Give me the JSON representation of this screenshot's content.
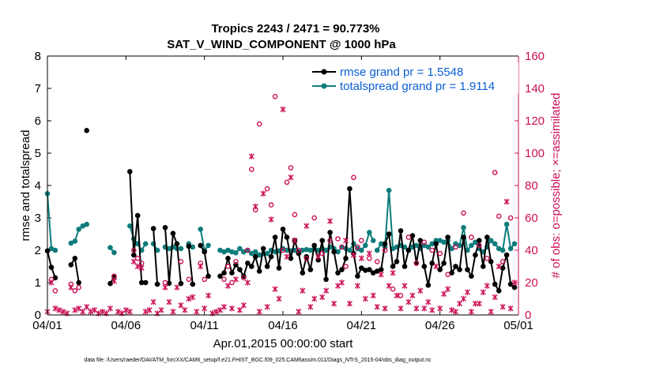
{
  "chart_data": {
    "type": "line",
    "title": "Tropics 2243 / 2471 = 90.773%",
    "subtitle": "SAT_V_WIND_COMPONENT @ 1000 hPa",
    "xlabel": "Apr.01,2015 00:00:00 start",
    "ylabel": "rmse and totalspread",
    "y2label": "# of obs: o=possible; ×=assimilated",
    "xticks": [
      "04/01",
      "04/06",
      "04/11",
      "04/16",
      "04/21",
      "04/26",
      "05/01"
    ],
    "yticks": [
      "0",
      "1",
      "2",
      "3",
      "4",
      "5",
      "6",
      "7",
      "8"
    ],
    "y2ticks": [
      "0",
      "20",
      "40",
      "60",
      "80",
      "100",
      "120",
      "140",
      "160"
    ],
    "xlim": [
      0,
      30
    ],
    "ylim": [
      0,
      8
    ],
    "y2lim": [
      0,
      160
    ],
    "footnote": "data file: /Users/raeder/DAI/ATM_forcXX/CAM6_setup/f.e21.FHIST_BGC.f09_025.CAM6assim.011/Diags_NTrS_2015-04/obs_diag_output.nc",
    "colors": {
      "rmse": "#000000",
      "spread": "#0e7c7b",
      "obs": "#cc0e56",
      "legend_text": "#0a5fd6",
      "y2axis": "#cc0e56"
    },
    "series": [
      {
        "name": "rmse grand pr = 1.5548",
        "color": "#000000",
        "segments": [
          {
            "x": [
              0,
              0.25,
              0.5
            ],
            "y": [
              1.98,
              1.47,
              1.15
            ]
          },
          {
            "x": [
              1.5,
              1.75,
              2.0
            ],
            "y": [
              1.55,
              1.75,
              1.0
            ]
          },
          {
            "x": [
              2.5
            ],
            "y": [
              5.7
            ]
          },
          {
            "x": [
              4.0,
              4.25
            ],
            "y": [
              0.97,
              1.18
            ]
          },
          {
            "x": [
              5.25,
              5.5,
              5.75,
              6.0,
              6.25
            ],
            "y": [
              4.43,
              1.85,
              3.07,
              1.0,
              1.0
            ]
          },
          {
            "x": [
              6.75,
              7.0
            ],
            "y": [
              2.67,
              0.95
            ]
          },
          {
            "x": [
              7.5,
              7.75,
              8.0,
              8.25,
              8.5
            ],
            "y": [
              2.7,
              0.98,
              2.52,
              2.2,
              0.97
            ]
          },
          {
            "x": [
              9.0,
              9.25
            ],
            "y": [
              2.12,
              0.95
            ]
          },
          {
            "x": [
              9.75,
              10.0,
              10.25
            ],
            "y": [
              2.15,
              1.95,
              1.2
            ]
          },
          {
            "x": [
              11.0,
              11.25,
              11.5,
              11.75,
              12.0,
              12.25,
              12.5,
              12.75,
              13.0,
              13.25,
              13.5,
              13.75,
              14.0,
              14.25,
              14.5,
              14.75,
              15.0,
              15.25,
              15.5,
              15.75,
              16.0,
              16.25,
              16.5,
              16.75,
              17.0,
              17.25,
              17.5,
              17.75,
              18.0,
              18.25,
              18.5,
              18.75,
              19.0,
              19.25,
              19.5,
              19.75,
              20.0,
              20.25,
              20.5,
              20.75
            ],
            "y": [
              1.2,
              1.3,
              1.75,
              1.3,
              1.55,
              1.4,
              1.2,
              1.6,
              1.5,
              1.8,
              1.35,
              2.05,
              1.5,
              1.8,
              2.4,
              1.45,
              2.65,
              2.4,
              1.75,
              2.3,
              1.9,
              1.3,
              1.8,
              1.4,
              2.15,
              1.7,
              2.3,
              1.1,
              2.55,
              1.95,
              1.3,
              1.4,
              1.75,
              3.9,
              1.9,
              1.2,
              1.45,
              1.38,
              1.4,
              1.3
            ]
          },
          {
            "x": [
              21.0,
              21.25,
              21.5,
              21.75,
              22.0,
              22.25,
              22.5,
              22.75,
              23.0,
              23.25,
              23.5,
              23.75,
              24.0,
              24.25,
              24.5,
              24.75,
              25.0,
              25.25,
              25.5,
              25.75,
              26.0,
              26.25,
              26.5,
              26.75,
              27.0,
              27.25,
              27.5,
              27.75,
              28.0,
              28.25,
              28.5,
              28.75,
              29.0,
              29.25,
              29.5,
              29.75
            ],
            "y": [
              1.35,
              1.4,
              2.2,
              2.5,
              1.5,
              1.65,
              2.6,
              1.5,
              2.0,
              2.45,
              1.6,
              2.3,
              1.5,
              0.92,
              1.6,
              2.2,
              1.4,
              1.6,
              2.4,
              1.3,
              1.5,
              1.4,
              2.4,
              1.4,
              1.2,
              1.85,
              2.3,
              1.5,
              2.4,
              1.65,
              0.95,
              0.75,
              1.45,
              1.85,
              0.95,
              0.85
            ]
          }
        ]
      },
      {
        "name": "totalspread grand pr = 1.9114",
        "color": "#0e7c7b",
        "segments": [
          {
            "x": [
              0,
              0.25,
              0.5
            ],
            "y": [
              3.75,
              2.05,
              2.0
            ]
          },
          {
            "x": [
              1.5,
              1.75,
              2.0,
              2.25
            ],
            "y": [
              2.22,
              2.28,
              2.65,
              2.75
            ]
          },
          {
            "x": [
              2.5
            ],
            "y": [
              2.8
            ]
          },
          {
            "x": [
              4.0,
              4.25
            ],
            "y": [
              2.08,
              1.93
            ]
          },
          {
            "x": [
              5.25,
              5.5,
              5.75,
              6.0,
              6.25
            ],
            "y": [
              2.75,
              2.35,
              2.2,
              2.0,
              2.2
            ]
          },
          {
            "x": [
              6.75,
              7.0
            ],
            "y": [
              2.2,
              2.0
            ]
          },
          {
            "x": [
              7.5,
              7.75,
              8.0,
              8.25,
              8.5
            ],
            "y": [
              2.1,
              2.05,
              2.1,
              2.05,
              2.05
            ]
          },
          {
            "x": [
              9.0,
              9.25
            ],
            "y": [
              2.2,
              2.1
            ]
          },
          {
            "x": [
              9.75,
              10.0,
              10.25
            ],
            "y": [
              2.65,
              2.0,
              2.15
            ]
          },
          {
            "x": [
              11.0,
              11.25,
              11.5,
              11.75,
              12.0,
              12.25,
              12.5,
              12.75,
              13.0,
              13.25,
              13.5,
              13.75,
              14.0,
              14.25,
              14.5,
              14.75,
              15.0,
              15.25,
              15.5,
              15.75,
              16.0,
              16.25,
              16.5,
              16.75,
              17.0,
              17.25,
              17.5,
              17.75,
              18.0,
              18.25,
              18.5,
              18.75,
              19.0,
              19.25,
              19.5,
              19.75,
              20.0,
              20.25,
              20.5,
              20.75
            ],
            "y": [
              2.0,
              1.95,
              2.0,
              1.95,
              1.92,
              2.05,
              1.95,
              2.0,
              1.9,
              1.95,
              1.85,
              1.9,
              1.9,
              2.0,
              1.95,
              1.98,
              2.05,
              2.0,
              1.98,
              2.0,
              1.95,
              2.0,
              2.02,
              2.0,
              2.05,
              2.0,
              2.05,
              2.0,
              2.1,
              2.05,
              1.95,
              2.1,
              2.05,
              2.0,
              2.2,
              2.05,
              2.0,
              2.15,
              2.55,
              2.3
            ]
          },
          {
            "x": [
              21.0,
              21.25,
              21.5,
              21.75,
              22.0,
              22.25,
              22.5,
              22.75,
              23.0,
              23.25,
              23.5,
              23.75,
              24.0,
              24.25,
              24.5,
              24.75,
              25.0,
              25.25,
              25.5,
              25.75,
              26.0,
              26.25,
              26.5,
              26.75,
              27.0,
              27.25,
              27.5,
              27.75,
              28.0,
              28.25,
              28.5,
              28.75,
              29.0,
              29.25,
              29.5,
              29.75
            ],
            "y": [
              2.0,
              2.2,
              2.1,
              3.85,
              2.05,
              2.1,
              2.15,
              2.1,
              2.0,
              2.1,
              2.15,
              2.05,
              2.15,
              2.1,
              2.2,
              2.3,
              2.3,
              2.25,
              2.3,
              2.05,
              2.2,
              2.15,
              2.7,
              2.0,
              2.15,
              2.25,
              2.05,
              1.95,
              2.1,
              2.3,
              2.2,
              2.05,
              2.0,
              2.8,
              2.05,
              2.2
            ]
          }
        ]
      }
    ],
    "obs_possible": {
      "x": [
        0.25,
        0.5,
        1.5,
        1.75,
        2.0,
        4.25,
        5.5,
        5.75,
        6.0,
        7.5,
        8.5,
        9.0,
        9.75,
        10.0,
        11.25,
        11.5,
        11.75,
        12.0,
        12.5,
        12.75,
        13.0,
        13.25,
        13.5,
        14.0,
        14.25,
        14.5,
        15.0,
        15.25,
        15.5,
        15.75,
        16.0,
        16.5,
        17.0,
        17.5,
        18.0,
        18.5,
        18.75,
        19.0,
        19.5,
        19.75,
        20.0,
        20.5,
        21.0,
        21.5,
        22.0,
        22.5,
        23.0,
        23.5,
        24.0,
        24.5,
        25.0,
        25.5,
        26.0,
        26.5,
        27.0,
        27.5,
        28.0,
        28.5,
        28.75,
        29.0,
        29.5
      ],
      "y": [
        22,
        15,
        19,
        15,
        17,
        24,
        40,
        35,
        32,
        20,
        33,
        22,
        32,
        22,
        22,
        30,
        20,
        33,
        23,
        40,
        90,
        65,
        118,
        78,
        68,
        135,
        40,
        82,
        91,
        62,
        40,
        35,
        60,
        38,
        46,
        47,
        42,
        30,
        85,
        42,
        46,
        35,
        33,
        40,
        16,
        12,
        48,
        32,
        45,
        40,
        38,
        25,
        42,
        63,
        48,
        43,
        35,
        88,
        61,
        33,
        60
      ]
    },
    "obs_assimilated": {
      "x": [
        0,
        0.25,
        0.5,
        0.75,
        1.0,
        1.25,
        1.5,
        1.75,
        2.0,
        2.25,
        2.5,
        2.75,
        3.0,
        3.25,
        3.5,
        3.75,
        4.0,
        4.25,
        4.5,
        4.75,
        5.0,
        5.25,
        5.5,
        5.75,
        6.0,
        6.25,
        6.5,
        6.75,
        7.0,
        7.25,
        7.5,
        7.75,
        8.0,
        8.25,
        8.5,
        8.75,
        9.0,
        9.25,
        9.5,
        9.75,
        10.0,
        10.25,
        10.5,
        10.75,
        11.0,
        11.25,
        11.5,
        11.75,
        12.0,
        12.25,
        12.5,
        12.75,
        13.0,
        13.25,
        13.5,
        13.75,
        14.0,
        14.25,
        14.5,
        14.75,
        15.0,
        15.25,
        15.5,
        15.75,
        16.0,
        16.25,
        16.5,
        16.75,
        17.0,
        17.25,
        17.5,
        17.75,
        18.0,
        18.25,
        18.5,
        18.75,
        19.0,
        19.25,
        19.5,
        19.75,
        20.0,
        20.25,
        20.5,
        20.75,
        21.0,
        21.25,
        21.5,
        21.75,
        22.0,
        22.25,
        22.5,
        22.75,
        23.0,
        23.25,
        23.5,
        23.75,
        24.0,
        24.25,
        24.5,
        24.75,
        25.0,
        25.25,
        25.5,
        25.75,
        26.0,
        26.25,
        26.5,
        26.75,
        27.0,
        27.25,
        27.5,
        27.75,
        28.0,
        28.25,
        28.5,
        28.75,
        29.0,
        29.25,
        29.5,
        29.75
      ],
      "y": [
        2,
        20,
        4,
        3,
        2,
        1,
        17,
        3,
        4,
        2,
        5,
        2,
        3,
        1,
        2,
        1,
        4,
        21,
        2,
        1,
        3,
        2,
        33,
        30,
        29,
        2,
        3,
        8,
        1,
        3,
        17,
        8,
        2,
        17,
        6,
        3,
        10,
        11,
        2,
        30,
        4,
        12,
        1,
        2,
        3,
        5,
        18,
        4,
        22,
        3,
        6,
        20,
        98,
        67,
        2,
        75,
        5,
        59,
        16,
        10,
        127,
        36,
        85,
        46,
        2,
        15,
        55,
        5,
        10,
        36,
        11,
        15,
        58,
        7,
        18,
        20,
        46,
        7,
        37,
        18,
        35,
        10,
        38,
        12,
        5,
        25,
        4,
        18,
        26,
        12,
        4,
        18,
        8,
        12,
        4,
        15,
        4,
        8,
        3,
        30,
        4,
        13,
        16,
        3,
        2,
        7,
        10,
        14,
        2,
        7,
        7,
        14,
        18,
        2,
        11,
        30,
        5,
        70,
        4,
        20
      ]
    }
  }
}
